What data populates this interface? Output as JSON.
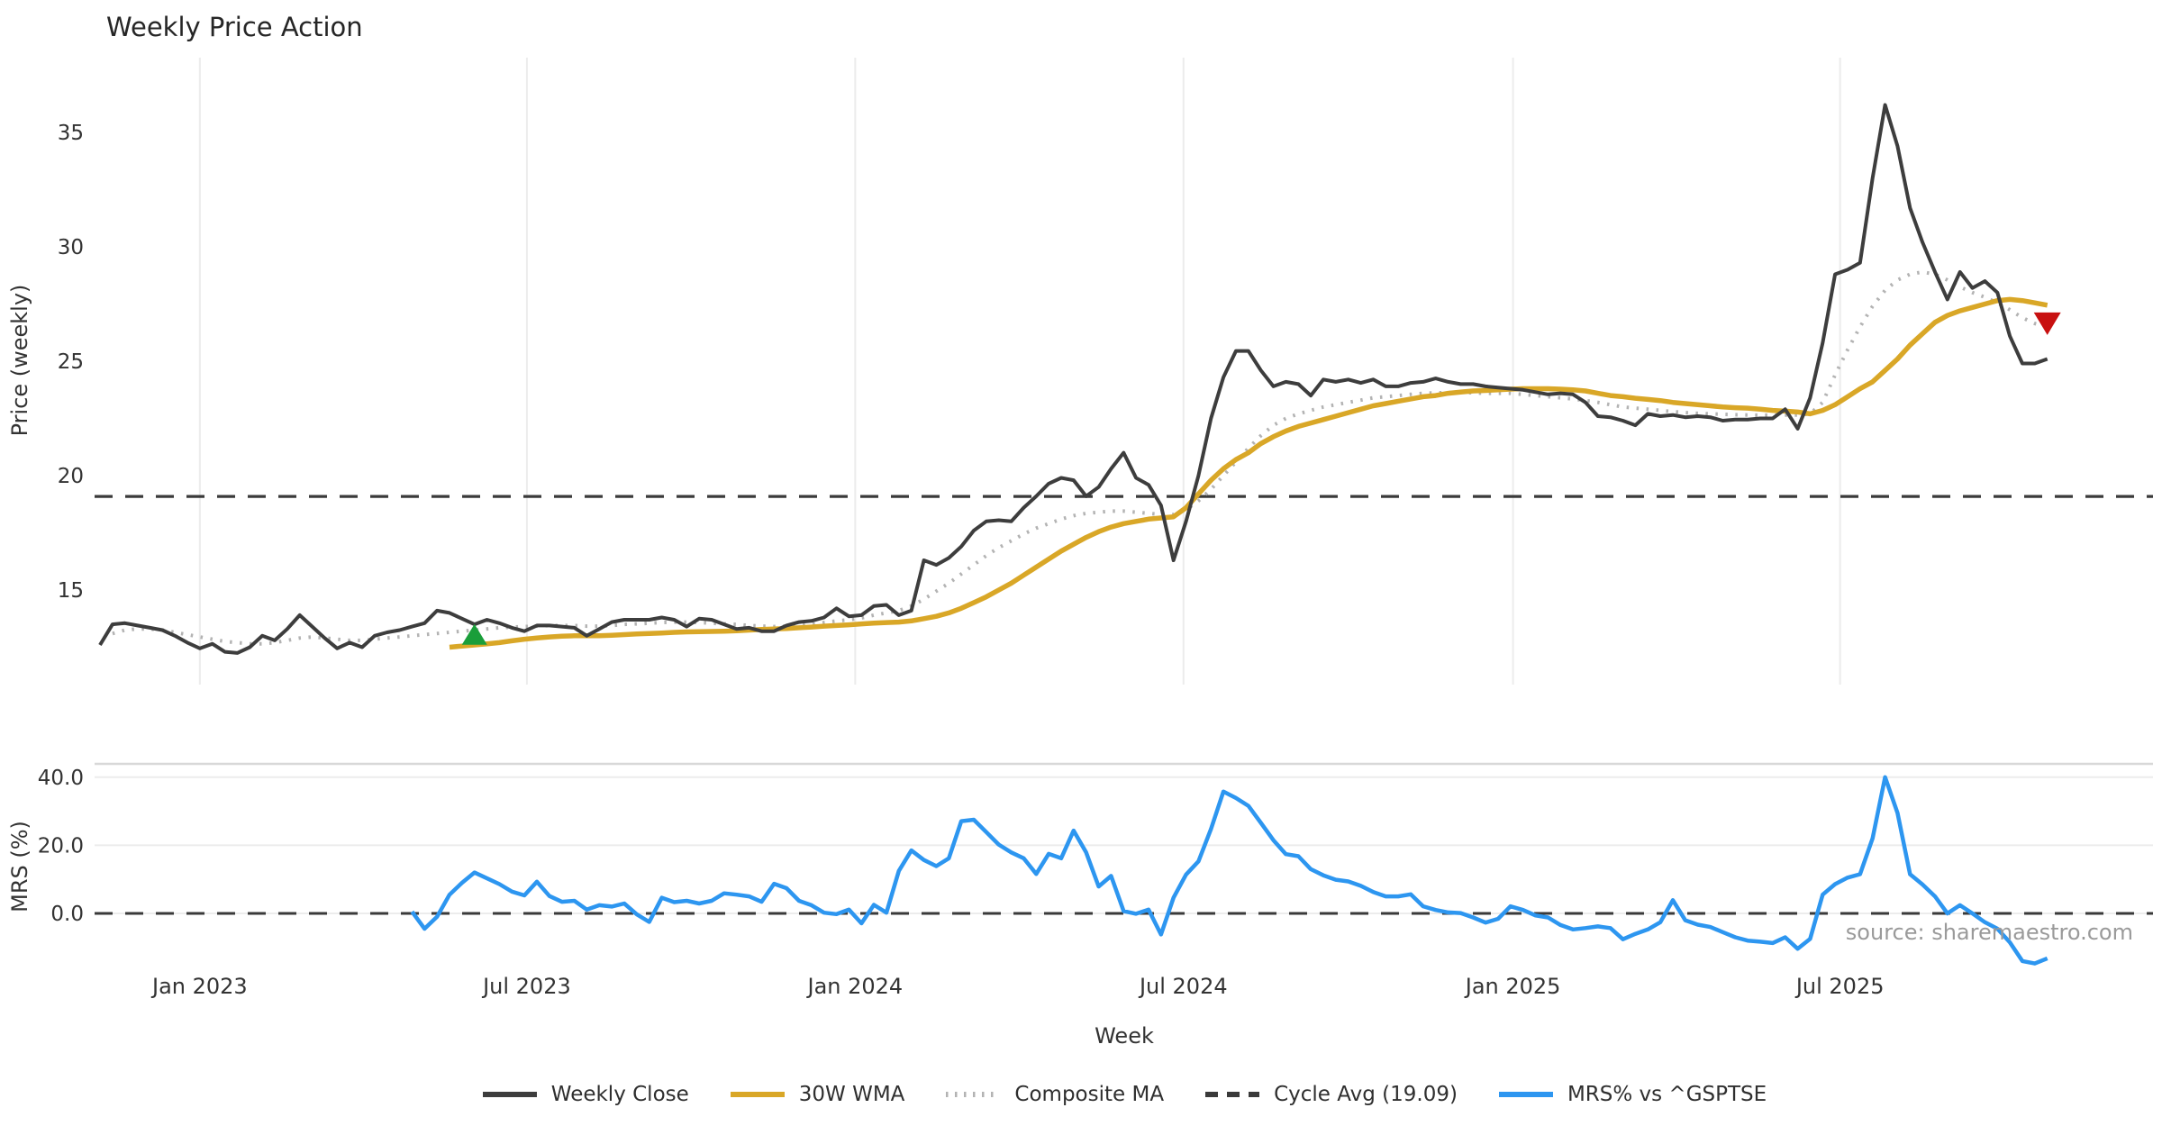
{
  "title": "Weekly Price Action",
  "source_note": "source: sharemaestro.com",
  "colors": {
    "close": "#3d3d3d",
    "wma": "#d9a727",
    "composite": "#b3b3b3",
    "cycle": "#3a3a3a",
    "mrs": "#2d96f0",
    "buy_marker": "#1a9e3a",
    "sell_marker": "#c81010",
    "grid": "#ececec",
    "spine": "#d8d8d8",
    "tick_text": "#333333"
  },
  "legend": {
    "items": [
      {
        "id": "weekly-close",
        "label": "Weekly Close",
        "color": "#3d3d3d",
        "style": "solid"
      },
      {
        "id": "wma-30w",
        "label": "30W WMA",
        "color": "#d9a727",
        "style": "solid"
      },
      {
        "id": "composite-ma",
        "label": "Composite MA",
        "color": "#b3b3b3",
        "style": "dotted"
      },
      {
        "id": "cycle-avg",
        "label": "Cycle Avg (19.09)",
        "color": "#3a3a3a",
        "style": "dashed"
      },
      {
        "id": "mrs-gsptse",
        "label": "MRS% vs ^GSPTSE",
        "color": "#2d96f0",
        "style": "solid"
      }
    ]
  },
  "chart_data": [
    {
      "type": "line",
      "panel": "price",
      "title": "Weekly Price Action",
      "xlabel": "Week",
      "ylabel": "Price (weekly)",
      "ylim": [
        10.8,
        37.2
      ],
      "yticks": [
        15,
        20,
        25,
        30,
        35
      ],
      "x_unit": "week_index_from_2022-11-07",
      "x_ticks": [
        {
          "week": 8.0,
          "label": "Jan 2023"
        },
        {
          "week": 34.2,
          "label": "Jul 2023"
        },
        {
          "week": 60.5,
          "label": "Jan 2024"
        },
        {
          "week": 86.8,
          "label": "Jul 2024"
        },
        {
          "week": 113.2,
          "label": "Jan 2025"
        },
        {
          "week": 139.4,
          "label": "Jul 2025"
        }
      ],
      "cycle_avg": 19.09,
      "grid": "vertical-only",
      "legend_position": "bottom-center",
      "markers": {
        "buy_signal": {
          "week_index": 30,
          "value": 13.0,
          "shape": "triangle-up"
        },
        "sell_signal": {
          "week_index": 156,
          "value": 26.7,
          "shape": "triangle-down"
        }
      },
      "series": [
        {
          "name": "Weekly Close",
          "values": [
            12.6,
            13.5,
            13.55,
            13.45,
            13.35,
            13.25,
            13.0,
            12.7,
            12.45,
            12.65,
            12.3,
            12.25,
            12.5,
            13.0,
            12.8,
            13.3,
            13.9,
            13.4,
            12.9,
            12.45,
            12.7,
            12.5,
            13.0,
            13.15,
            13.25,
            13.4,
            13.55,
            14.1,
            14.0,
            13.75,
            13.5,
            13.7,
            13.55,
            13.35,
            13.2,
            13.45,
            13.45,
            13.4,
            13.35,
            13.0,
            13.3,
            13.6,
            13.7,
            13.7,
            13.7,
            13.8,
            13.7,
            13.4,
            13.75,
            13.7,
            13.5,
            13.3,
            13.35,
            13.2,
            13.2,
            13.45,
            13.6,
            13.65,
            13.8,
            14.2,
            13.85,
            13.9,
            14.3,
            14.35,
            13.9,
            14.1,
            16.3,
            16.1,
            16.4,
            16.9,
            17.6,
            18.0,
            18.05,
            18.0,
            18.6,
            19.1,
            19.65,
            19.9,
            19.8,
            19.1,
            19.5,
            20.3,
            21.0,
            19.9,
            19.6,
            18.7,
            16.3,
            18.0,
            20.0,
            22.5,
            24.3,
            25.45,
            25.45,
            24.6,
            23.9,
            24.1,
            24.0,
            23.5,
            24.2,
            24.1,
            24.2,
            24.05,
            24.2,
            23.9,
            23.9,
            24.05,
            24.1,
            24.25,
            24.1,
            24.0,
            24.0,
            23.9,
            23.85,
            23.8,
            23.75,
            23.65,
            23.55,
            23.6,
            23.55,
            23.2,
            22.6,
            22.55,
            22.4,
            22.2,
            22.7,
            22.6,
            22.65,
            22.55,
            22.6,
            22.55,
            22.4,
            22.45,
            22.45,
            22.5,
            22.5,
            22.9,
            22.05,
            23.4,
            25.8,
            28.8,
            29.0,
            29.3,
            33.0,
            36.2,
            34.4,
            31.7,
            30.2,
            28.9,
            27.7,
            28.9,
            28.2,
            28.5,
            28.0,
            26.1,
            24.9,
            24.9,
            25.1
          ]
        },
        {
          "name": "30W WMA",
          "values": [
            null,
            null,
            null,
            null,
            null,
            null,
            null,
            null,
            null,
            null,
            null,
            null,
            null,
            null,
            null,
            null,
            null,
            null,
            null,
            null,
            null,
            null,
            null,
            null,
            null,
            null,
            null,
            null,
            12.5,
            12.55,
            12.6,
            12.65,
            12.7,
            12.78,
            12.85,
            12.9,
            12.95,
            12.98,
            13.0,
            13.0,
            13.0,
            13.02,
            13.05,
            13.08,
            13.1,
            13.12,
            13.15,
            13.17,
            13.18,
            13.19,
            13.2,
            13.22,
            13.25,
            13.28,
            13.3,
            13.32,
            13.35,
            13.38,
            13.42,
            13.45,
            13.48,
            13.52,
            13.55,
            13.58,
            13.6,
            13.65,
            13.75,
            13.85,
            14.0,
            14.2,
            14.45,
            14.7,
            15.0,
            15.3,
            15.65,
            16.0,
            16.35,
            16.7,
            17.0,
            17.3,
            17.55,
            17.75,
            17.9,
            18.0,
            18.1,
            18.15,
            18.2,
            18.6,
            19.2,
            19.8,
            20.3,
            20.7,
            21.0,
            21.4,
            21.7,
            21.95,
            22.15,
            22.3,
            22.45,
            22.6,
            22.75,
            22.9,
            23.05,
            23.15,
            23.25,
            23.35,
            23.45,
            23.5,
            23.6,
            23.65,
            23.7,
            23.72,
            23.75,
            23.78,
            23.8,
            23.8,
            23.8,
            23.78,
            23.75,
            23.7,
            23.6,
            23.5,
            23.45,
            23.38,
            23.33,
            23.28,
            23.2,
            23.15,
            23.1,
            23.05,
            23.0,
            22.97,
            22.95,
            22.9,
            22.85,
            22.82,
            22.78,
            22.7,
            22.85,
            23.1,
            23.45,
            23.8,
            24.1,
            24.6,
            25.1,
            25.7,
            26.2,
            26.7,
            27.0,
            27.2,
            27.35,
            27.5,
            27.65,
            27.7,
            27.65,
            27.55,
            27.45
          ]
        },
        {
          "name": "Composite MA",
          "values": [
            null,
            13.1,
            13.25,
            13.3,
            13.3,
            13.25,
            13.15,
            13.05,
            12.95,
            12.85,
            12.75,
            12.7,
            12.65,
            12.65,
            12.7,
            12.8,
            12.9,
            12.95,
            12.9,
            12.85,
            12.8,
            12.8,
            12.85,
            12.9,
            12.95,
            13.0,
            13.05,
            13.1,
            13.15,
            13.2,
            13.25,
            13.3,
            13.35,
            13.38,
            13.4,
            13.42,
            13.45,
            13.45,
            13.45,
            13.42,
            13.42,
            13.45,
            13.5,
            13.52,
            13.55,
            13.58,
            13.6,
            13.6,
            13.58,
            13.55,
            13.52,
            13.5,
            13.45,
            13.42,
            13.4,
            13.42,
            13.45,
            13.5,
            13.58,
            13.65,
            13.7,
            13.78,
            13.9,
            14.0,
            14.1,
            14.3,
            14.6,
            14.95,
            15.3,
            15.7,
            16.1,
            16.5,
            16.85,
            17.15,
            17.45,
            17.7,
            17.9,
            18.1,
            18.25,
            18.35,
            18.4,
            18.45,
            18.45,
            18.4,
            18.35,
            18.3,
            18.3,
            18.5,
            18.9,
            19.4,
            20.0,
            20.6,
            21.2,
            21.75,
            22.2,
            22.5,
            22.7,
            22.85,
            23.0,
            23.1,
            23.2,
            23.3,
            23.4,
            23.45,
            23.5,
            23.55,
            23.6,
            23.62,
            23.63,
            23.63,
            23.62,
            23.6,
            23.6,
            23.6,
            23.55,
            23.5,
            23.45,
            23.4,
            23.35,
            23.28,
            23.2,
            23.1,
            23.0,
            22.95,
            22.9,
            22.85,
            22.8,
            22.75,
            22.72,
            22.7,
            22.68,
            22.66,
            22.65,
            22.64,
            22.64,
            22.65,
            22.65,
            22.7,
            23.2,
            24.4,
            25.5,
            26.5,
            27.4,
            28.1,
            28.55,
            28.8,
            28.9,
            28.8,
            28.55,
            28.25,
            28.0,
            27.8,
            27.55,
            27.25,
            26.9,
            26.65,
            26.5
          ]
        }
      ]
    },
    {
      "type": "line",
      "panel": "mrs",
      "xlabel": "Week",
      "ylabel": "MRS (%)",
      "ylim": [
        -17,
        45
      ],
      "yticks": [
        {
          "value": 0,
          "label": "0.0"
        },
        {
          "value": 20,
          "label": "20.0"
        },
        {
          "value": 40,
          "label": "40.0"
        }
      ],
      "zero_line_dashed": true,
      "grid": "horizontal-only",
      "series": [
        {
          "name": "MRS% vs ^GSPTSE",
          "values": [
            null,
            null,
            null,
            null,
            null,
            null,
            null,
            null,
            null,
            null,
            null,
            null,
            null,
            null,
            null,
            null,
            null,
            null,
            null,
            null,
            null,
            null,
            null,
            null,
            null,
            0.5,
            -4.5,
            -1.0,
            5.5,
            9.0,
            12.0,
            10.3,
            8.6,
            6.4,
            5.3,
            9.3,
            5.1,
            3.4,
            3.7,
            1.1,
            2.4,
            2.0,
            2.9,
            -0.3,
            -2.5,
            4.6,
            3.3,
            3.7,
            2.9,
            3.7,
            5.9,
            5.5,
            5.0,
            3.4,
            8.7,
            7.4,
            3.7,
            2.4,
            0.2,
            -0.2,
            1.1,
            -2.9,
            2.5,
            0.2,
            12.5,
            18.5,
            15.7,
            13.9,
            16.2,
            27.1,
            27.5,
            23.9,
            20.2,
            17.9,
            16.2,
            11.6,
            17.5,
            16.2,
            24.3,
            17.9,
            7.9,
            11.0,
            0.7,
            -0.1,
            1.1,
            -6.2,
            4.6,
            11.4,
            15.3,
            24.8,
            35.8,
            33.9,
            31.6,
            26.6,
            21.5,
            17.4,
            16.8,
            13.0,
            11.2,
            9.9,
            9.4,
            8.1,
            6.3,
            5.0,
            5.0,
            5.6,
            2.1,
            1.0,
            0.3,
            0.1,
            -1.2,
            -2.7,
            -1.6,
            2.1,
            1.0,
            -0.6,
            -1.2,
            -3.4,
            -4.7,
            -4.3,
            -3.8,
            -4.3,
            -7.6,
            -6.0,
            -4.7,
            -2.6,
            3.9,
            -2.0,
            -3.3,
            -4.0,
            -5.5,
            -7.0,
            -8.0,
            -8.3,
            -8.7,
            -7.0,
            -10.4,
            -7.5,
            5.5,
            8.6,
            10.5,
            11.5,
            22.0,
            40.0,
            29.5,
            11.5,
            8.5,
            5.0,
            0.0,
            2.4,
            0.0,
            -2.6,
            -4.5,
            -8.5,
            -14.0,
            -14.7,
            -13.2
          ]
        }
      ]
    }
  ]
}
